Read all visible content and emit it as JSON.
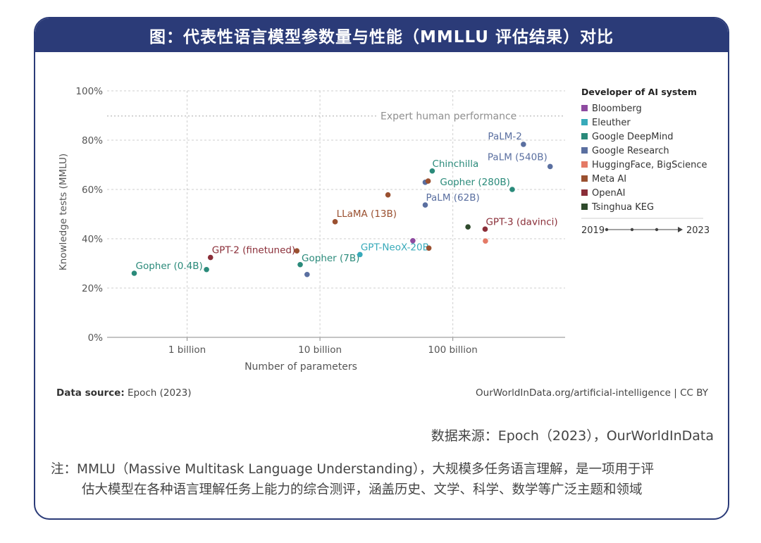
{
  "header": {
    "title": "图：代表性语言模型参数量与性能（MMLLU 评估结果）对比"
  },
  "chart_data": {
    "type": "scatter",
    "xlabel": "Number of parameters",
    "ylabel": "Knowledge tests (MMLU)",
    "x_scale": "log",
    "xlim": [
      250000000,
      700000000000
    ],
    "ylim": [
      0,
      100
    ],
    "x_ticks": [
      {
        "value": 1000000000,
        "label": "1 billion"
      },
      {
        "value": 10000000000,
        "label": "10 billion"
      },
      {
        "value": 100000000000,
        "label": "100 billion"
      }
    ],
    "y_ticks": [
      {
        "value": 0,
        "label": "0%"
      },
      {
        "value": 20,
        "label": "20%"
      },
      {
        "value": 40,
        "label": "40%"
      },
      {
        "value": 60,
        "label": "60%"
      },
      {
        "value": 80,
        "label": "80%"
      },
      {
        "value": 100,
        "label": "100%"
      }
    ],
    "grid": true,
    "reference_line": {
      "y": 89.8,
      "label": "Expert human performance"
    },
    "legend": {
      "title": "Developer of AI system",
      "position": "right",
      "items": [
        {
          "name": "Bloomberg",
          "color": "#8e4aa0"
        },
        {
          "name": "Eleuther",
          "color": "#38aaba"
        },
        {
          "name": "Google DeepMind",
          "color": "#2a8a7a"
        },
        {
          "name": "Google Research",
          "color": "#5a6fa0"
        },
        {
          "name": "HuggingFace, BigScience",
          "color": "#e47a66"
        },
        {
          "name": "Meta AI",
          "color": "#9a5030"
        },
        {
          "name": "OpenAI",
          "color": "#8a2e38"
        },
        {
          "name": "Tsinghua KEG",
          "color": "#2f4a2c"
        }
      ]
    },
    "timeline": {
      "start": "2019",
      "end": "2023"
    },
    "points": [
      {
        "x": 400000000,
        "y": 26,
        "developer": "Google DeepMind",
        "label": "Gopher (0.4B)"
      },
      {
        "x": 1400000000,
        "y": 27.5,
        "developer": "Google DeepMind",
        "label": ""
      },
      {
        "x": 1500000000,
        "y": 32.4,
        "developer": "OpenAI",
        "label": "GPT-2 (finetuned)"
      },
      {
        "x": 6700000000,
        "y": 35.1,
        "developer": "Meta AI",
        "label": ""
      },
      {
        "x": 7100000000,
        "y": 29.5,
        "developer": "Google DeepMind",
        "label": "Gopher (7B)"
      },
      {
        "x": 8000000000,
        "y": 25.5,
        "developer": "Google Research",
        "label": ""
      },
      {
        "x": 13000000000,
        "y": 46.9,
        "developer": "Meta AI",
        "label": "LLaMA (13B)"
      },
      {
        "x": 20000000000,
        "y": 33.6,
        "developer": "Eleuther",
        "label": "GPT-NeoX-20B"
      },
      {
        "x": 32500000000,
        "y": 57.8,
        "developer": "Meta AI",
        "label": ""
      },
      {
        "x": 50000000000,
        "y": 39.2,
        "developer": "Bloomberg",
        "label": ""
      },
      {
        "x": 62000000000,
        "y": 53.7,
        "developer": "Google Research",
        "label": "PaLM (62B)"
      },
      {
        "x": 62000000000,
        "y": 62.9,
        "developer": "Google Research",
        "label": ""
      },
      {
        "x": 65200000000,
        "y": 63.4,
        "developer": "Meta AI",
        "label": ""
      },
      {
        "x": 66000000000,
        "y": 36.2,
        "developer": "Meta AI",
        "label": ""
      },
      {
        "x": 70000000000,
        "y": 67.5,
        "developer": "Google DeepMind",
        "label": "Chinchilla"
      },
      {
        "x": 130000000000,
        "y": 44.8,
        "developer": "Tsinghua KEG",
        "label": ""
      },
      {
        "x": 175000000000,
        "y": 43.9,
        "developer": "OpenAI",
        "label": "GPT-3 (davinci)"
      },
      {
        "x": 176000000000,
        "y": 39.1,
        "developer": "HuggingFace, BigScience",
        "label": ""
      },
      {
        "x": 280000000000,
        "y": 60,
        "developer": "Google DeepMind",
        "label": "Gopher (280B)"
      },
      {
        "x": 340000000000,
        "y": 78.3,
        "developer": "Google Research",
        "label": "PaLM-2"
      },
      {
        "x": 540000000000,
        "y": 69.3,
        "developer": "Google Research",
        "label": "PaLM (540B)"
      }
    ],
    "source_left_label": "Data source:",
    "source_left": "Epoch (2023)",
    "source_right": "OurWorldInData.org/artificial-intelligence | CC BY"
  },
  "footer": {
    "source_cn": "数据来源：Epoch（2023），OurWorldInData",
    "note_line1": "注：MMLU（Massive Multitask Language Understanding），大规模多任务语言理解，是一项用于评",
    "note_line2": "估大模型在各种语言理解任务上能力的综合测评，涵盖历史、文学、科学、数学等广泛主题和领域"
  }
}
